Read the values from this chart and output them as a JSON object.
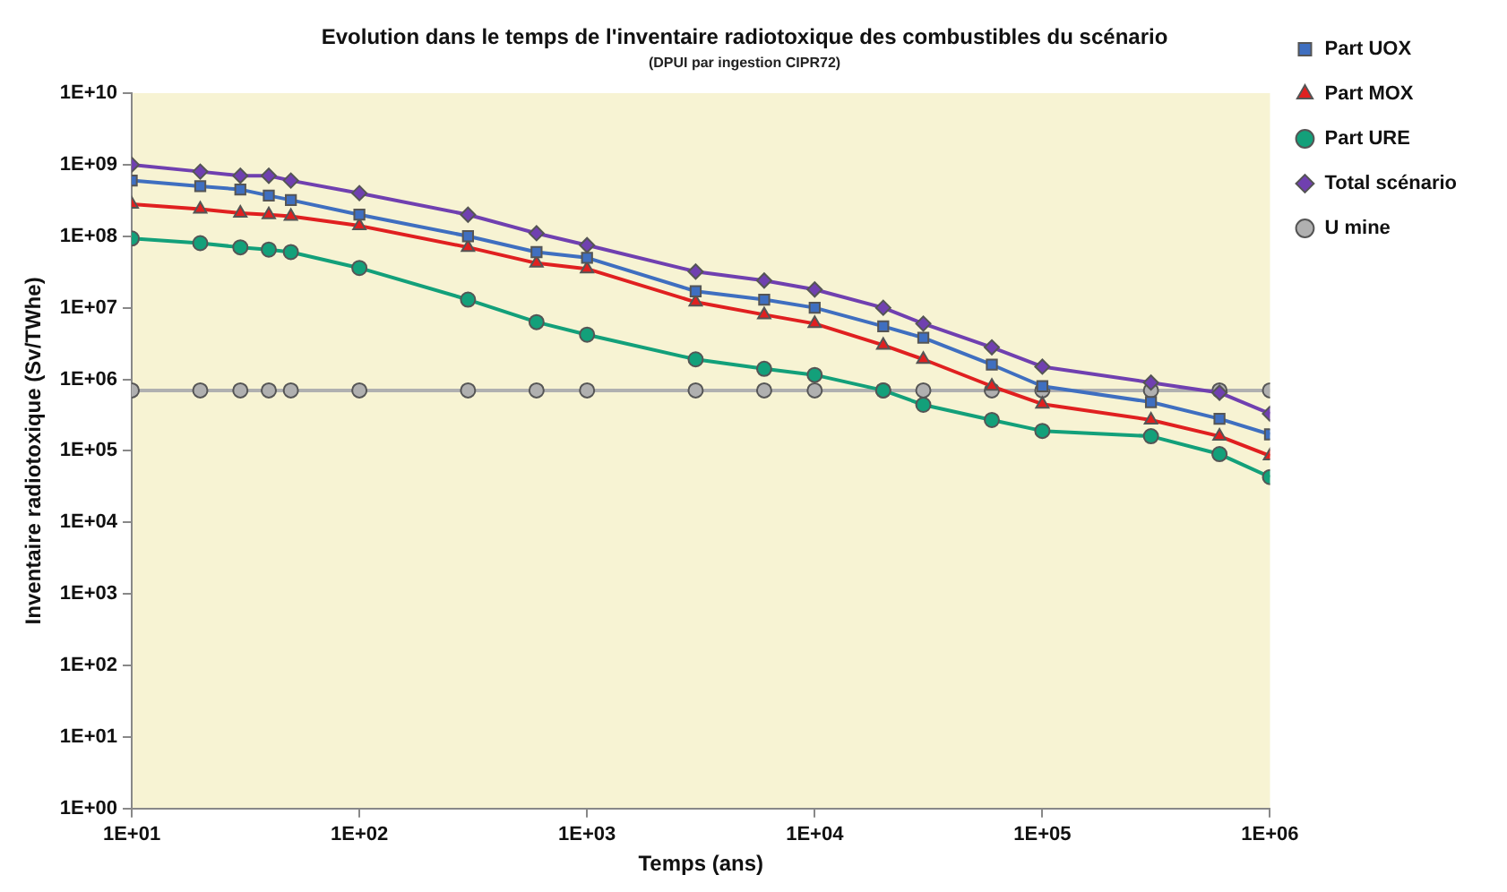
{
  "chart_data": {
    "type": "line",
    "title": "Evolution dans le temps de l'inventaire radiotoxique des combustibles du scénario",
    "subtitle": "(DPUI par ingestion CIPR72)",
    "xlabel": "Temps (ans)",
    "ylabel": "Inventaire radiotoxique (Sv/TWhe)",
    "x": [
      10,
      20,
      30,
      40,
      50,
      100,
      300,
      600,
      1000,
      3000,
      6000,
      10000,
      20000,
      30000,
      60000,
      100000,
      300000,
      600000,
      1000000
    ],
    "series": [
      {
        "name": "Part UOX",
        "color": "#3f6fc0",
        "marker": "square",
        "values": [
          600000000,
          500000000,
          450000000,
          370000000,
          320000000,
          200000000,
          100000000,
          60000000,
          50000000,
          17000000,
          13000000,
          10000000,
          5500000,
          3800000,
          1600000,
          800000,
          480000,
          280000,
          170000
        ]
      },
      {
        "name": "Part MOX",
        "color": "#e02020",
        "marker": "triangle",
        "values": [
          280000000,
          240000000,
          210000000,
          200000000,
          190000000,
          140000000,
          70000000,
          42000000,
          35000000,
          12000000,
          8000000,
          6000000,
          3000000,
          1900000,
          800000,
          450000,
          270000,
          160000,
          85000
        ]
      },
      {
        "name": "Part URE",
        "color": "#13a07a",
        "marker": "circle",
        "values": [
          93000000,
          80000000,
          70000000,
          65000000,
          60000000,
          36000000,
          13000000,
          6300000,
          4200000,
          1900000,
          1400000,
          1150000,
          700000,
          440000,
          270000,
          190000,
          160000,
          90000,
          43000
        ]
      },
      {
        "name": "Total scénario",
        "color": "#7040b0",
        "marker": "diamond",
        "values": [
          1000000000,
          800000000,
          700000000,
          700000000,
          600000000,
          400000000,
          200000000,
          110000000,
          75000000,
          32000000,
          24000000,
          18000000,
          10000000,
          6000000,
          2800000,
          1500000,
          900000,
          650000,
          330000
        ]
      },
      {
        "name": "U mine",
        "color": "#b0b0b0",
        "marker": "circle",
        "values": [
          700000,
          700000,
          700000,
          700000,
          700000,
          700000,
          700000,
          700000,
          700000,
          700000,
          700000,
          700000,
          700000,
          700000,
          700000,
          700000,
          700000,
          700000,
          700000
        ]
      }
    ],
    "log": "xy",
    "xlim": [
      10,
      1000000
    ],
    "xticks": [
      {
        "value": 10,
        "label": "1E+01"
      },
      {
        "value": 100,
        "label": "1E+02"
      },
      {
        "value": 1000,
        "label": "1E+03"
      },
      {
        "value": 10000,
        "label": "1E+04"
      },
      {
        "value": 100000,
        "label": "1E+05"
      },
      {
        "value": 1000000,
        "label": "1E+06"
      }
    ],
    "ylim": [
      1,
      10000000000
    ],
    "yticks": [
      {
        "value": 1,
        "label": "1E+00"
      },
      {
        "value": 10,
        "label": "1E+01"
      },
      {
        "value": 100,
        "label": "1E+02"
      },
      {
        "value": 1000,
        "label": "1E+03"
      },
      {
        "value": 10000,
        "label": "1E+04"
      },
      {
        "value": 100000,
        "label": "1E+05"
      },
      {
        "value": 1000000,
        "label": "1E+06"
      },
      {
        "value": 10000000,
        "label": "1E+07"
      },
      {
        "value": 100000000,
        "label": "1E+08"
      },
      {
        "value": 1000000000,
        "label": "1E+09"
      },
      {
        "value": 10000000000,
        "label": "1E+10"
      }
    ],
    "grid": false,
    "legend": "top right",
    "line_style": "solid"
  }
}
